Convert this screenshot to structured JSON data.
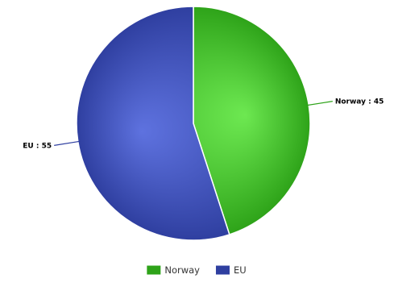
{
  "chart_data": {
    "type": "pie",
    "title": "",
    "slices": [
      {
        "name": "Norway",
        "value": 45,
        "label": "Norway : 45",
        "color": "#2ea319",
        "highlight": "#6de851"
      },
      {
        "name": "EU",
        "value": 55,
        "label": "EU : 55",
        "color": "#2f3fa0",
        "highlight": "#5e72df"
      }
    ],
    "legend": {
      "position": "bottom",
      "items": [
        {
          "name": "Norway",
          "color": "#2ea319"
        },
        {
          "name": "EU",
          "color": "#2f3fa0"
        }
      ]
    },
    "start_angle_deg": 0,
    "direction": "clockwise"
  }
}
